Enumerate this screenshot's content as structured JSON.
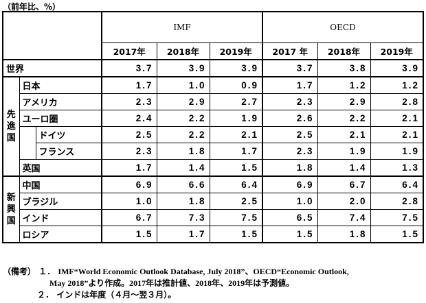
{
  "unit": "（前年比、%）",
  "headers": {
    "imf": "IMF",
    "oecd": "OECD",
    "imf_years": [
      "2017年",
      "2018年",
      "2019年"
    ],
    "oecd_years": [
      "2017 年",
      "2018年",
      "2019年"
    ]
  },
  "groups": {
    "advanced": "先進国",
    "emerging": "新興国"
  },
  "rows": [
    {
      "label": "世界",
      "v": [
        "3.7",
        "3.9",
        "3.9",
        "3.7",
        "3.8",
        "3.9"
      ]
    },
    {
      "label": "日本",
      "v": [
        "1.7",
        "1.0",
        "0.9",
        "1.7",
        "1.2",
        "1.2"
      ]
    },
    {
      "label": "アメリカ",
      "v": [
        "2.3",
        "2.9",
        "2.7",
        "2.3",
        "2.9",
        "2.8"
      ]
    },
    {
      "label": "ユーロ圏",
      "v": [
        "2.4",
        "2.2",
        "1.9",
        "2.6",
        "2.2",
        "2.1"
      ]
    },
    {
      "label": "ドイツ",
      "v": [
        "2.5",
        "2.2",
        "2.1",
        "2.5",
        "2.1",
        "2.1"
      ]
    },
    {
      "label": "フランス",
      "v": [
        "2.3",
        "1.8",
        "1.7",
        "2.3",
        "1.9",
        "1.9"
      ]
    },
    {
      "label": "英国",
      "v": [
        "1.7",
        "1.4",
        "1.5",
        "1.8",
        "1.4",
        "1.3"
      ]
    },
    {
      "label": "中国",
      "v": [
        "6.9",
        "6.6",
        "6.4",
        "6.9",
        "6.7",
        "6.4"
      ]
    },
    {
      "label": "ブラジル",
      "v": [
        "1.0",
        "1.8",
        "2.5",
        "1.0",
        "2.0",
        "2.8"
      ]
    },
    {
      "label": "インド",
      "v": [
        "6.7",
        "7.3",
        "7.5",
        "6.5",
        "7.4",
        "7.5"
      ]
    },
    {
      "label": "ロシア",
      "v": [
        "1.5",
        "1.7",
        "1.5",
        "1.5",
        "1.8",
        "1.5"
      ]
    }
  ],
  "notes": {
    "prefix": "（備考）",
    "n1_num": "１．",
    "n1_line1": "IMF“World Economic Outlook Database, July 2018”、OECD“Economic Outlook,",
    "n1_line2": "May 2018”より作成。2017年は推計値、2018年、2019年は予測値。",
    "n2_num": "２．",
    "n2_text": "インドは年度（４月～翌３月）。"
  }
}
